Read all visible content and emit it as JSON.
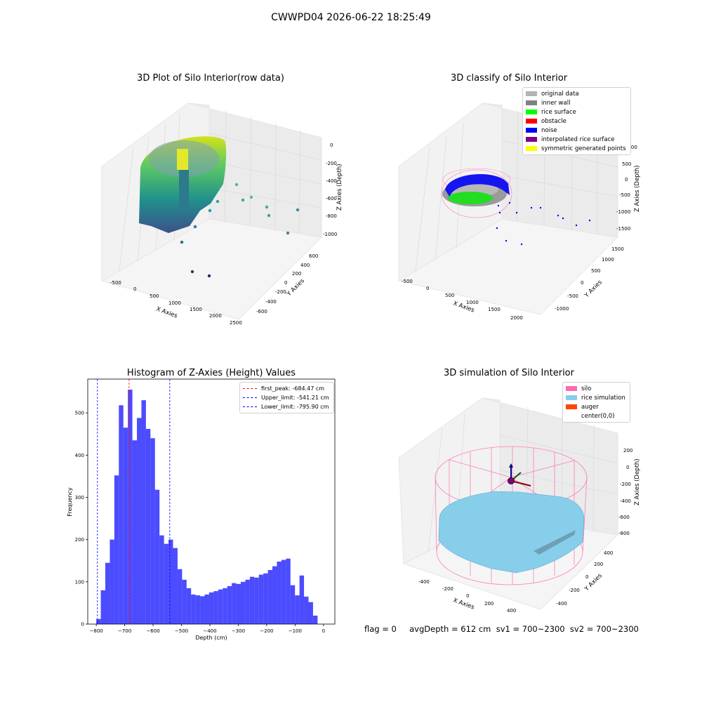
{
  "figure": {
    "suptitle": "CWWPD04 2026-06-22 18:25:49",
    "footer": "flag = 0     avgDepth = 612 cm  sv1 = 700~2300  sv2 = 700~2300"
  },
  "panel_raw": {
    "title": "3D Plot of Silo Interior(row data)",
    "xlabel": "X Axies",
    "ylabel": "Y Axies",
    "zlabel": "Z Axies (Depth)",
    "xticks": [
      "-500",
      "0",
      "500",
      "1000",
      "1500",
      "2000",
      "2500"
    ],
    "yticks": [
      "-600",
      "-400",
      "-200",
      "0",
      "200",
      "400",
      "600"
    ],
    "zticks": [
      "0",
      "-200",
      "-400",
      "-600",
      "-800",
      "-1000"
    ]
  },
  "panel_classify": {
    "title": "3D classify of Silo Interior",
    "xlabel": "X Axies",
    "ylabel": "Y Axies",
    "zlabel": "Z Axies (Depth)",
    "xticks": [
      "-500",
      "0",
      "500",
      "1000",
      "1500",
      "2000"
    ],
    "yticks": [
      "-1000",
      "-500",
      "0",
      "500",
      "1000",
      "1500"
    ],
    "zticks": [
      "1000",
      "500",
      "0",
      "-500",
      "-1000",
      "-1500"
    ],
    "legend": [
      {
        "label": "original data",
        "color": "#b3b3b3"
      },
      {
        "label": "inner wall",
        "color": "#808080"
      },
      {
        "label": "rice surface",
        "color": "#00ff00"
      },
      {
        "label": "obstacle",
        "color": "#ff0000"
      },
      {
        "label": "noise",
        "color": "#0000ff"
      },
      {
        "label": "interpolated rice surface",
        "color": "#800080"
      },
      {
        "label": "symmetric generated points",
        "color": "#ffff00"
      }
    ]
  },
  "panel_sim": {
    "title": "3D simulation of Silo Interior",
    "xlabel": "X Axies",
    "ylabel": "Y Axies",
    "zlabel": "Z Axies (Depth)",
    "xticks": [
      "-400",
      "-200",
      "0",
      "200",
      "400"
    ],
    "yticks": [
      "-400",
      "-200",
      "0",
      "200",
      "400"
    ],
    "zticks": [
      "200",
      "0",
      "-200",
      "-400",
      "-600",
      "-800"
    ],
    "legend": [
      {
        "label": "silo",
        "color": "#ff69b4"
      },
      {
        "label": "rice simulation",
        "color": "#87ceeb"
      },
      {
        "label": "auger",
        "color": "#ff4500"
      },
      {
        "label": "center(0,0)",
        "color": ""
      }
    ]
  },
  "chart_data": {
    "type": "bar",
    "title": "Histogram of Z-Axies (Height) Values",
    "xlabel": "Depth (cm)",
    "ylabel": "Frequency",
    "xlim": [
      -830,
      40
    ],
    "ylim": [
      0,
      580
    ],
    "xticks": [
      -800,
      -700,
      -600,
      -500,
      -400,
      -300,
      -200,
      -100,
      0
    ],
    "yticks": [
      0,
      100,
      200,
      300,
      400,
      500
    ],
    "bar_color": "#0000ff",
    "bins": {
      "start": -800,
      "width": 15.9,
      "counts": [
        12,
        80,
        145,
        200,
        352,
        518,
        465,
        555,
        435,
        488,
        530,
        462,
        440,
        318,
        210,
        190,
        200,
        180,
        130,
        105,
        85,
        70,
        68,
        66,
        70,
        75,
        78,
        82,
        85,
        90,
        97,
        95,
        100,
        105,
        112,
        110,
        117,
        120,
        128,
        137,
        148,
        152,
        155,
        92,
        68,
        115,
        65,
        52,
        20
      ]
    },
    "lines": [
      {
        "label": "first_peak: -684.47 cm",
        "x": -684.47,
        "color": "#ff0000"
      },
      {
        "label": "Upper_limit: -541.21 cm",
        "x": -541.21,
        "color": "#0000ff"
      },
      {
        "label": "Lower_limit: -795.90 cm",
        "x": -795.9,
        "color": "#0000ff"
      }
    ]
  }
}
